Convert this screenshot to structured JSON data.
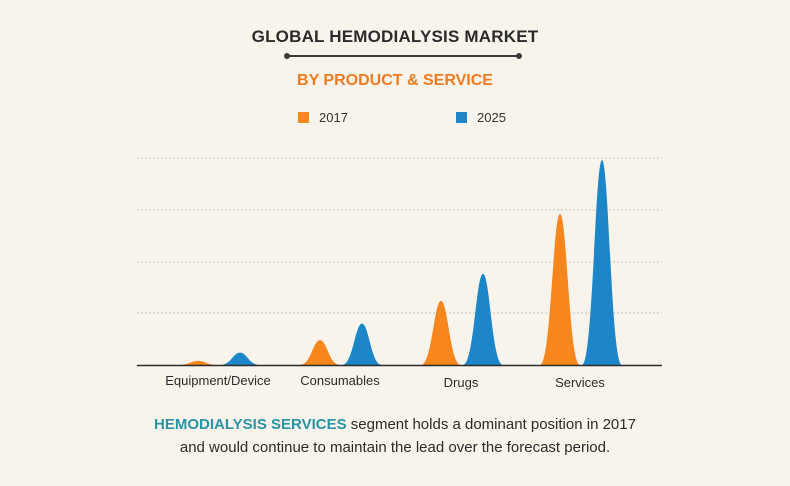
{
  "header": {
    "title": "GLOBAL HEMODIALYSIS MARKET",
    "subtitle": "BY PRODUCT & SERVICE"
  },
  "legend": [
    {
      "label": "2017",
      "color": "#f7861d"
    },
    {
      "label": "2025",
      "color": "#1d86c8"
    }
  ],
  "colors": {
    "subtitle": "#f07a20",
    "highlight": "#2a93a5"
  },
  "footer": {
    "highlight": "HEMODIALYSIS SERVICES",
    "line1_rest": " segment holds a dominant position in 2017",
    "line2": "and would continue to maintain the lead over the forecast period."
  },
  "chart_data": {
    "type": "area",
    "categories": [
      "Equipment/Device",
      "Consumables",
      "Drugs",
      "Services"
    ],
    "series": [
      {
        "name": "2017",
        "values": [
          0.02,
          0.12,
          0.31,
          0.73
        ]
      },
      {
        "name": "2025",
        "values": [
          0.06,
          0.2,
          0.44,
          0.99
        ]
      }
    ],
    "ylim": [
      0,
      1
    ],
    "grid": true,
    "legend_position": "top"
  }
}
